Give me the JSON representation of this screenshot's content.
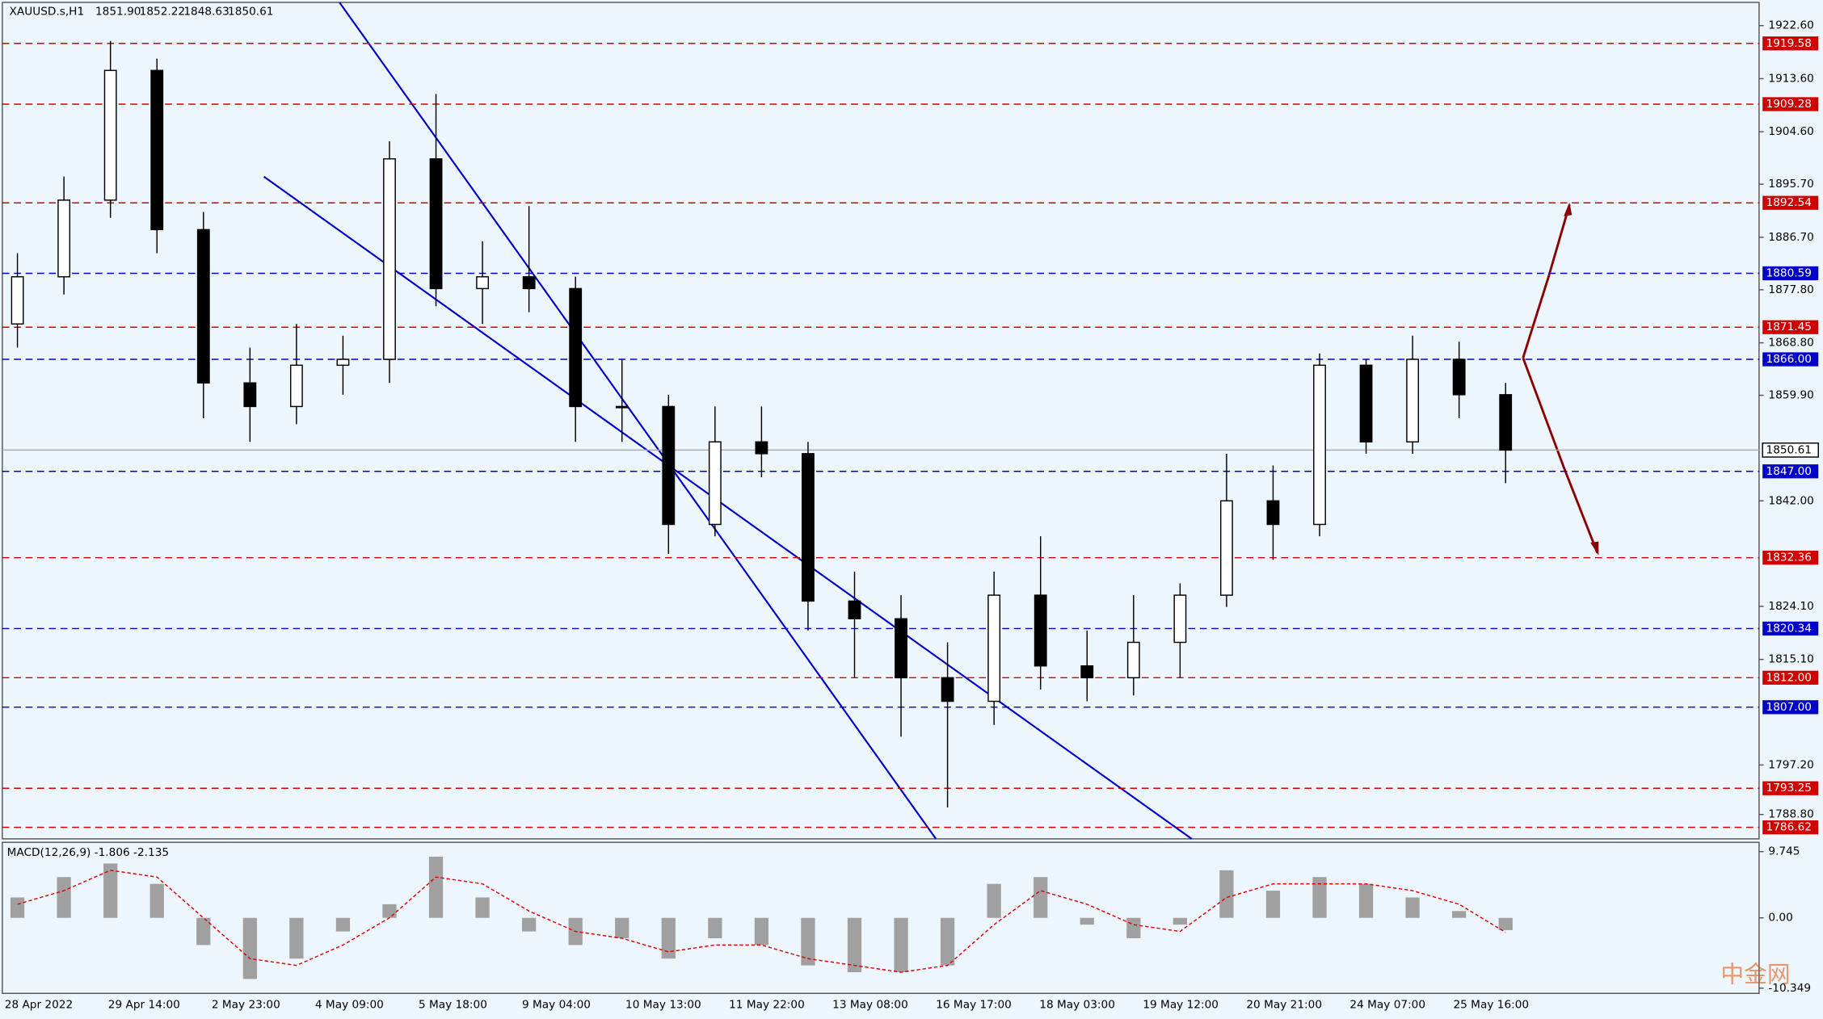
{
  "header": {
    "symbol": "XAUUSD.s,H1",
    "open": "1851.90",
    "high": "1852.22",
    "low": "1848.63",
    "close": "1850.61"
  },
  "watermark": "中金网",
  "chart_data": {
    "type": "candlestick",
    "ylim": [
      1784.67,
      1926.34
    ],
    "yticks": [
      {
        "value": 1922.6,
        "label": "1922.60"
      },
      {
        "value": 1913.6,
        "label": "1913.60"
      },
      {
        "value": 1904.6,
        "label": "1904.60"
      },
      {
        "value": 1895.7,
        "label": "1895.70"
      },
      {
        "value": 1886.7,
        "label": "1886.70"
      },
      {
        "value": 1877.8,
        "label": "1877.80"
      },
      {
        "value": 1868.8,
        "label": "1868.80"
      },
      {
        "value": 1859.9,
        "label": "1859.90"
      },
      {
        "value": 1842,
        "label": "1842.00"
      },
      {
        "value": 1824.1,
        "label": "1824.10"
      },
      {
        "value": 1815.1,
        "label": "1815.10"
      },
      {
        "value": 1797.2,
        "label": "1797.20"
      },
      {
        "value": 1788.8,
        "label": "1788.80"
      }
    ],
    "levels": [
      {
        "value": 1919.58,
        "color": "#d00000"
      },
      {
        "value": 1909.28,
        "color": "#d00000"
      },
      {
        "value": 1892.54,
        "color": "#d00000"
      },
      {
        "value": 1880.59,
        "color": "#0000c8"
      },
      {
        "value": 1871.45,
        "color": "#d00000"
      },
      {
        "value": 1866,
        "label": "1866.00",
        "color": "#0000c8"
      },
      {
        "value": 1847,
        "label": "1847.00",
        "color": "#0000c8"
      },
      {
        "value": 1832.36,
        "color": "#d00000"
      },
      {
        "value": 1820.34,
        "color": "#0000c8"
      },
      {
        "value": 1812,
        "label": "1812.00",
        "color": "#d00000"
      },
      {
        "value": 1807,
        "label": "1807.00",
        "color": "#0000c8"
      },
      {
        "value": 1793.25,
        "color": "#d00000"
      },
      {
        "value": 1786.62,
        "color": "#d00000"
      }
    ],
    "last": 1850.61,
    "xlabels": [
      "28 Apr 2022",
      "29 Apr 14:00",
      "2 May 23:00",
      "4 May 09:00",
      "5 May 18:00",
      "9 May 04:00",
      "10 May 13:00",
      "11 May 22:00",
      "13 May 08:00",
      "16 May 17:00",
      "18 May 03:00",
      "19 May 12:00",
      "20 May 21:00",
      "24 May 07:00",
      "25 May 16:00"
    ],
    "open": [
      1872,
      1880,
      1893,
      1915,
      1888,
      1862,
      1858,
      1865,
      1866,
      1900,
      1878,
      1880,
      1878,
      1858,
      1858,
      1838,
      1852,
      1850,
      1825,
      1822,
      1812,
      1808,
      1826,
      1814,
      1812,
      1818,
      1826,
      1842,
      1838,
      1865,
      1852,
      1866,
      1860
    ],
    "high": [
      1884,
      1897,
      1920,
      1917,
      1891,
      1868,
      1872,
      1870,
      1903,
      1911,
      1886,
      1892,
      1880,
      1866,
      1860,
      1858,
      1858,
      1852,
      1830,
      1826,
      1818,
      1830,
      1836,
      1820,
      1826,
      1828,
      1850,
      1848,
      1867,
      1866,
      1870,
      1869,
      1862
    ],
    "low": [
      1868,
      1877,
      1890,
      1884,
      1856,
      1852,
      1855,
      1860,
      1862,
      1875,
      1872,
      1874,
      1852,
      1852,
      1833,
      1836,
      1846,
      1820,
      1812,
      1802,
      1790,
      1804,
      1810,
      1808,
      1809,
      1812,
      1824,
      1832,
      1836,
      1850,
      1850,
      1856,
      1845
    ],
    "close": [
      1880,
      1893,
      1915,
      1888,
      1862,
      1858,
      1865,
      1866,
      1900,
      1878,
      1880,
      1878,
      1858,
      1858,
      1838,
      1852,
      1850,
      1825,
      1822,
      1812,
      1808,
      1826,
      1814,
      1812,
      1818,
      1826,
      1842,
      1838,
      1865,
      1852,
      1866,
      1860,
      1850.61
    ],
    "macd": {
      "title": "MACD(12,26,9) -1.806 -2.135",
      "ylim": [
        -14.19,
        10.94
      ],
      "yticks": [
        {
          "value": 9.745,
          "label": "9.745"
        },
        {
          "value": 0,
          "label": "0.00"
        },
        {
          "value": -10.349,
          "label": "-10.349"
        }
      ],
      "histogram": [
        3,
        6,
        8,
        5,
        -4,
        -9,
        -6,
        -2,
        2,
        9,
        3,
        -2,
        -4,
        -3,
        -6,
        -3,
        -4,
        -7,
        -8,
        -8,
        -7,
        5,
        6,
        -1,
        -3,
        -1,
        7,
        4,
        6,
        5,
        3,
        1,
        -1.806
      ],
      "signal": [
        2,
        4,
        7,
        6,
        0,
        -6,
        -7,
        -4,
        0,
        6,
        5,
        1,
        -2,
        -3,
        -5,
        -4,
        -4,
        -6,
        -7,
        -8,
        -7,
        -1,
        4,
        2,
        -1,
        -2,
        3,
        5,
        5,
        5,
        4,
        2,
        -2.135
      ]
    }
  }
}
